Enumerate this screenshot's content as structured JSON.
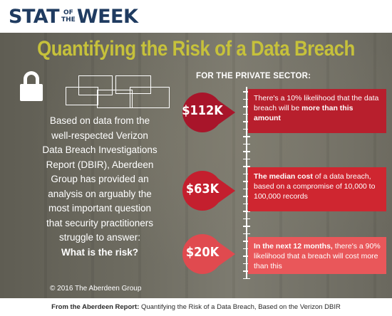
{
  "brand": {
    "stat": "STAT",
    "of": "OF",
    "the": "THE",
    "week": "WEEK"
  },
  "title": "Quantifying the Risk of a Data Breach",
  "description": {
    "lines": [
      "Based on data from the",
      "well-respected Verizon",
      "Data Breach Investigations",
      "Report (DBIR), Aberdeen",
      "Group has provided an",
      "analysis on arguably the",
      "most important question",
      "that security practitioners",
      "struggle to answer:"
    ],
    "question": "What is the risk?"
  },
  "copyright": "© 2016 The Aberdeen Group",
  "sector_label": "FOR THE PRIVATE SECTOR:",
  "stats": [
    {
      "value": "$112K",
      "marker_color": "#a8152a",
      "card_color": "#b81f2d",
      "text_pre": "There's a 10% likelihood that the data breach will be ",
      "text_bold": "more than this amount",
      "text_post": "",
      "bold_first": false
    },
    {
      "value": "$63K",
      "marker_color": "#c41f2e",
      "card_color": "#cf2630",
      "text_bold": "The median cost",
      "text_pre": "",
      "text_post": " of a data breach, based on a compromise of 10,000 to 100,000 records",
      "bold_first": true
    },
    {
      "value": "$20K",
      "marker_color": "#e04a4f",
      "card_color": "#e9575a",
      "text_bold": "In the next 12 months,",
      "text_pre": "",
      "text_post": " there's a 90% likelihood that a breach will cost more than this",
      "bold_first": true
    }
  ],
  "footer": {
    "bold": "From the Aberdeen Report:",
    "text": " Quantifying the Risk of a Data Breach, Based on the Verizon DBIR"
  }
}
